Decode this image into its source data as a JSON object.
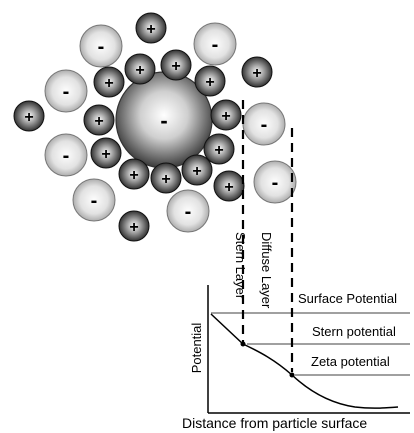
{
  "labels": {
    "stern_layer": "Stern Layer",
    "diffuse_layer": "Diffuse Layer",
    "surface_potential": "Surface Potential",
    "stern_potential": "Stern potential",
    "zeta_potential": "Zeta potential",
    "y_axis": "Potential",
    "x_axis": "Distance from particle surface"
  },
  "signs": {
    "particle": "-",
    "positive_ion": "+",
    "negative_ion": "-"
  },
  "colors": {
    "positive_ion": "#2f2f2f",
    "negative_ion": "#b8b8b8",
    "particle": "#5a5a5a",
    "line": "#000000"
  }
}
